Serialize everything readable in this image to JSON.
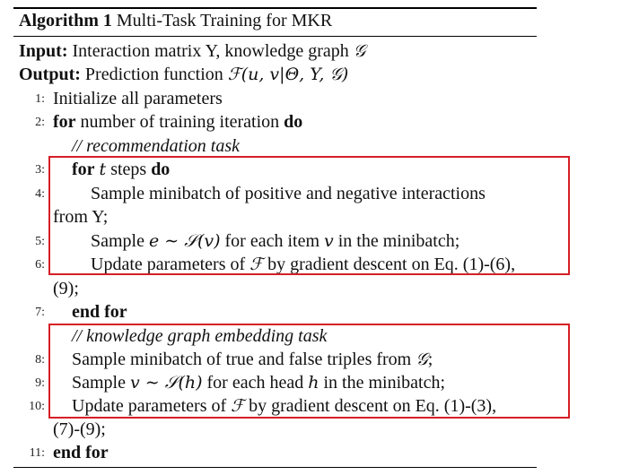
{
  "algorithm": {
    "label": "Algorithm 1",
    "title": "Multi-Task Training for MKR"
  },
  "io": {
    "input_label": "Input:",
    "input_text": "Interaction matrix Y, knowledge graph ",
    "input_sym": "𝒢",
    "output_label": "Output:",
    "output_text": "Prediction function ",
    "output_sym": "ℱ",
    "output_args": "(u, v|Θ, Y, 𝒢)"
  },
  "lines": {
    "l1": {
      "num": "1:",
      "text": "Initialize all parameters"
    },
    "l2": {
      "num": "2:",
      "kw1": "for",
      "text": " number of training iteration ",
      "kw2": "do"
    },
    "c1": {
      "text": "// recommendation task"
    },
    "l3": {
      "num": "3:",
      "kw1": "for",
      "var": "t",
      "text": " steps ",
      "kw2": "do"
    },
    "l4": {
      "num": "4:",
      "text": "Sample minibatch of positive and negative interactions",
      "cont": "from Y;"
    },
    "l5": {
      "num": "5:",
      "pre": "Sample ",
      "expr": "e ∼ 𝒮(v)",
      "mid": " for each item ",
      "var": "v",
      "post": " in the minibatch;"
    },
    "l6": {
      "num": "6:",
      "pre": "Update parameters of ",
      "sym": "ℱ",
      "post": " by gradient descent on Eq. (1)-(6),",
      "cont": "(9);"
    },
    "l7": {
      "num": "7:",
      "kw": "end for"
    },
    "c2": {
      "text": "// knowledge graph embedding task"
    },
    "l8": {
      "num": "8:",
      "pre": "Sample minibatch of true and false triples from ",
      "sym": "𝒢",
      "post": ";"
    },
    "l9": {
      "num": "9:",
      "pre": "Sample ",
      "expr": "v ∼ 𝒮(h)",
      "mid": " for each head ",
      "var": "h",
      "post": " in the minibatch;"
    },
    "l10": {
      "num": "10:",
      "pre": "Update parameters of ",
      "sym": "ℱ",
      "post": " by gradient descent on Eq. (1)-(3),",
      "cont": "(7)-(9);"
    },
    "l11": {
      "num": "11:",
      "kw": "end for"
    }
  },
  "colors": {
    "highlight_box": "#d61f26"
  }
}
